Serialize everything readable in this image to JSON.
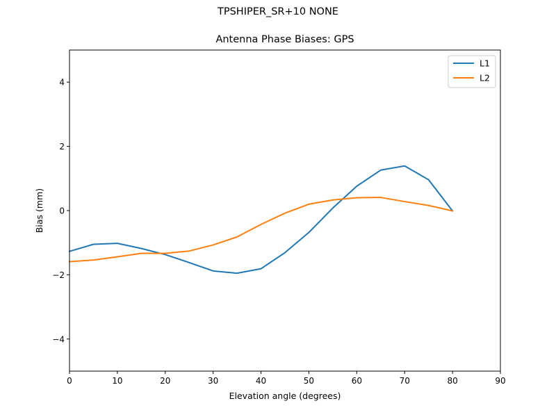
{
  "suptitle": "TPSHIPER_SR+10  NONE",
  "chart_data": {
    "type": "line",
    "title": "Antenna Phase Biases: GPS",
    "xlabel": "Elevation angle (degrees)",
    "ylabel": "Bias (mm)",
    "xlim": [
      0,
      90
    ],
    "ylim": [
      -5,
      5
    ],
    "xticks": [
      0,
      10,
      20,
      30,
      40,
      50,
      60,
      70,
      80,
      90
    ],
    "yticks": [
      4,
      2,
      0,
      -2,
      -4
    ],
    "ytick_labels": [
      "4",
      "2",
      "0",
      "−2",
      "−4"
    ],
    "grid": false,
    "legend_position": "top-right",
    "x": [
      0,
      5,
      10,
      15,
      20,
      25,
      30,
      35,
      40,
      45,
      50,
      55,
      60,
      65,
      70,
      75,
      80
    ],
    "series": [
      {
        "name": "L1",
        "color": "#1f77b4",
        "values": [
          -1.27,
          -1.05,
          -1.02,
          -1.18,
          -1.37,
          -1.62,
          -1.88,
          -1.95,
          -1.81,
          -1.31,
          -0.68,
          0.08,
          0.76,
          1.26,
          1.39,
          0.96,
          -0.01
        ]
      },
      {
        "name": "L2",
        "color": "#ff7f0e",
        "values": [
          -1.59,
          -1.54,
          -1.44,
          -1.33,
          -1.33,
          -1.26,
          -1.07,
          -0.82,
          -0.43,
          -0.08,
          0.2,
          0.33,
          0.4,
          0.41,
          0.28,
          0.16,
          -0.01
        ]
      }
    ]
  }
}
